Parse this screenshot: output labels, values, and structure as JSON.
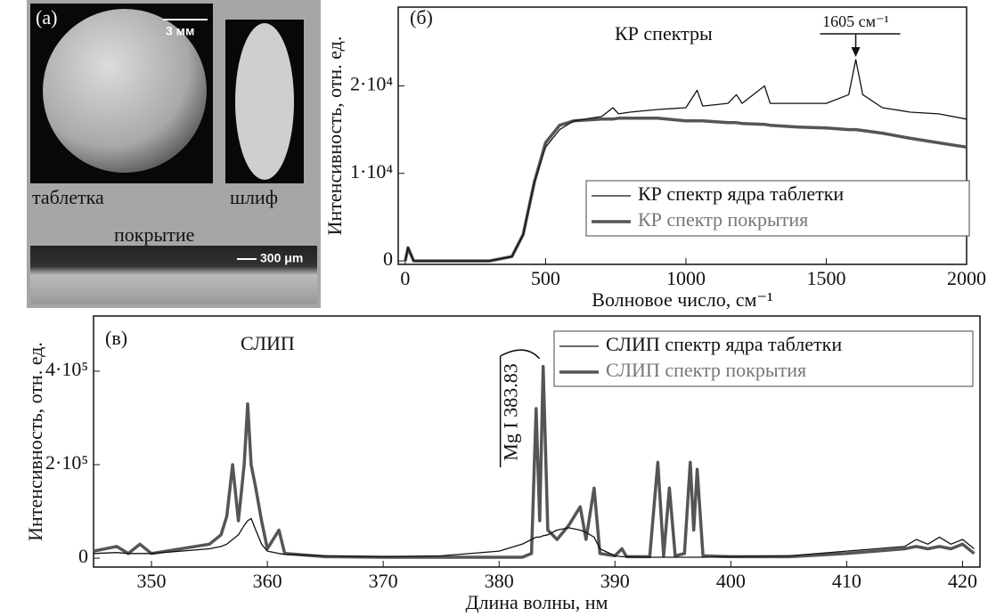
{
  "photo_panel": {
    "label": "(а)",
    "scale_top": "3 мм",
    "caption_tablet": "таблетка",
    "caption_section": "шлиф",
    "caption_coating": "покрытие",
    "scale_bottom": "300 μm"
  },
  "chart_data": [
    {
      "type": "line",
      "panel_label": "(б)",
      "title": "КР спектры",
      "annotation": "1605 см⁻¹",
      "xlabel": "Волновое число, см⁻¹",
      "ylabel": "Интенсивность, отн. ед.",
      "x": [
        0,
        10,
        30,
        300,
        380,
        420,
        460,
        500,
        550,
        600,
        700,
        740,
        760,
        800,
        900,
        1000,
        1040,
        1060,
        1150,
        1180,
        1200,
        1280,
        1300,
        1400,
        1500,
        1580,
        1605,
        1630,
        1700,
        1800,
        1900,
        2000
      ],
      "series": [
        {
          "name": "КР спектр ядра таблетки",
          "color": "#111111",
          "values": [
            0,
            1500,
            0,
            0,
            500,
            3000,
            9000,
            13000,
            15000,
            16000,
            16500,
            17500,
            16800,
            17000,
            17300,
            17500,
            19500,
            17700,
            18000,
            19000,
            18000,
            20000,
            18000,
            18000,
            18000,
            19000,
            23000,
            19000,
            17500,
            17000,
            16800,
            16200
          ]
        },
        {
          "name": "КР спектр покрытия",
          "color": "#555555",
          "values": [
            0,
            1500,
            0,
            0,
            500,
            3000,
            9000,
            13500,
            15500,
            16000,
            16200,
            16200,
            16300,
            16300,
            16300,
            16000,
            16000,
            16000,
            15800,
            15800,
            15700,
            15600,
            15500,
            15300,
            15200,
            15000,
            15000,
            14900,
            14600,
            14000,
            13500,
            13000
          ]
        }
      ],
      "xlim": [
        -25,
        2000
      ],
      "xticks": [
        0,
        500,
        1000,
        1500,
        2000
      ],
      "ylim": [
        -400,
        29000
      ],
      "yticks": [
        0,
        {
          "value": 10000,
          "label": "1·10⁴"
        },
        {
          "value": 20000,
          "label": "2·10⁴"
        }
      ]
    },
    {
      "type": "line",
      "panel_label": "(в)",
      "title": "СЛИП",
      "annotation": "Mg I 383.83",
      "xlabel": "Длина волны, нм",
      "ylabel": "Интенсивность, отн. ед.",
      "x": [
        345,
        347,
        348,
        349,
        350,
        355,
        356,
        356.5,
        357,
        357.5,
        358,
        358.3,
        358.6,
        359,
        359.5,
        360,
        361,
        361.5,
        365,
        370,
        375,
        380,
        382,
        382.8,
        383.2,
        383.5,
        383.8,
        384.2,
        385,
        386,
        387,
        387.5,
        388.2,
        388.7,
        390,
        390.6,
        391,
        393,
        393.7,
        394.2,
        394.7,
        395.2,
        396,
        396.5,
        396.8,
        397.1,
        397.6,
        400,
        405,
        410,
        415,
        416,
        417,
        418,
        419,
        420,
        421
      ],
      "series": [
        {
          "name": "СЛИП спектр ядра таблетки",
          "color": "#111111",
          "values": [
            10000,
            12000,
            10000,
            10000,
            10000,
            20000,
            25000,
            30000,
            40000,
            50000,
            70000,
            80000,
            85000,
            60000,
            30000,
            15000,
            10000,
            8000,
            5000,
            3000,
            5000,
            15000,
            30000,
            40000,
            45000,
            45000,
            48000,
            50000,
            60000,
            65000,
            60000,
            55000,
            45000,
            20000,
            5000,
            3000,
            3000,
            2000,
            2000,
            2000,
            2000,
            2000,
            2000,
            2000,
            2000,
            2000,
            2000,
            3000,
            5000,
            15000,
            25000,
            40000,
            30000,
            45000,
            30000,
            40000,
            20000
          ]
        },
        {
          "name": "СЛИП спектр покрытия",
          "color": "#555555",
          "values": [
            15000,
            25000,
            10000,
            30000,
            10000,
            30000,
            50000,
            90000,
            200000,
            80000,
            200000,
            330000,
            200000,
            150000,
            80000,
            20000,
            60000,
            10000,
            3000,
            2000,
            2000,
            2000,
            2000,
            10000,
            320000,
            80000,
            410000,
            60000,
            40000,
            70000,
            110000,
            40000,
            150000,
            10000,
            5000,
            20000,
            3000,
            3000,
            205000,
            5000,
            150000,
            5000,
            10000,
            205000,
            60000,
            190000,
            5000,
            3000,
            3000,
            10000,
            20000,
            25000,
            20000,
            25000,
            20000,
            30000,
            10000
          ]
        }
      ],
      "xlim": [
        345,
        421.5
      ],
      "xticks": [
        350,
        360,
        370,
        380,
        390,
        400,
        410,
        420
      ],
      "ylim": [
        -19000,
        518000
      ],
      "yticks": [
        0,
        {
          "value": 200000,
          "label": "2·10⁵"
        },
        {
          "value": 400000,
          "label": "4·10⁵"
        }
      ]
    }
  ]
}
